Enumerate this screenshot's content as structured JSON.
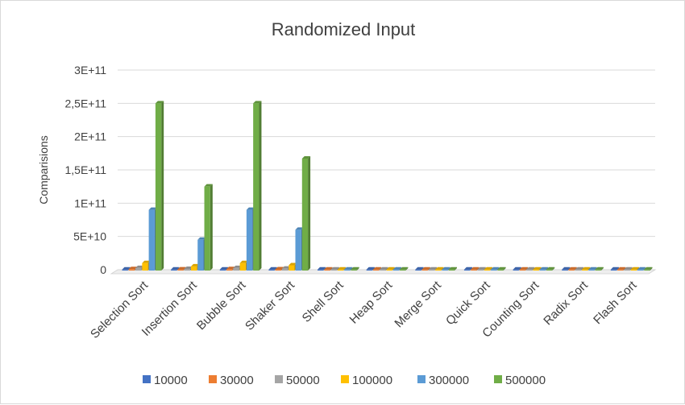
{
  "chart_data": {
    "type": "bar",
    "title": "Randomized Input",
    "xlabel": "",
    "ylabel": "Comparisions",
    "ylim": [
      0,
      300000000000
    ],
    "yticks": [
      0,
      50000000000,
      100000000000,
      150000000000,
      200000000000,
      250000000000,
      300000000000
    ],
    "ytick_labels": [
      "0",
      "5E+10",
      "1E+11",
      "1,5E+11",
      "2E+11",
      "2,5E+11",
      "3E+11"
    ],
    "categories": [
      "Selection Sort",
      "Insertion Sort",
      "Bubble Sort",
      "Shaker Sort",
      "Shell Sort",
      "Heap Sort",
      "Merge Sort",
      "Quick Sort",
      "Counting Sort",
      "Radix Sort",
      "Flash Sort"
    ],
    "series": [
      {
        "name": "10000",
        "color": "#4472C4",
        "values": [
          100000000,
          50000000,
          100000000,
          70000000,
          600000,
          500000,
          300000,
          300000,
          60000,
          400000,
          200000
        ]
      },
      {
        "name": "30000",
        "color": "#ED7D31",
        "values": [
          900000000,
          450000000,
          900000000,
          600000000,
          2000000,
          1600000,
          1000000,
          1100000,
          180000,
          1300000,
          700000
        ]
      },
      {
        "name": "50000",
        "color": "#A5A5A5",
        "values": [
          2500000000,
          1250000000,
          2500000000,
          1670000000,
          3600000,
          2800000,
          1700000,
          1900000,
          300000,
          2100000,
          1100000
        ]
      },
      {
        "name": "100000",
        "color": "#FFC000",
        "values": [
          10000000000,
          5000000000,
          10000000000,
          6700000000,
          7800000,
          6000000,
          3600000,
          4000000,
          600000,
          4300000,
          2300000
        ]
      },
      {
        "name": "300000",
        "color": "#5B9BD5",
        "values": [
          90000000000,
          45000000000,
          90000000000,
          60000000000,
          27000000,
          19000000,
          11500000,
          13000000,
          1800000,
          13000000,
          6800000
        ]
      },
      {
        "name": "500000",
        "color": "#70AD47",
        "values": [
          250000000000,
          125000000000,
          250000000000,
          167000000000,
          49000000,
          33000000,
          20000000,
          22000000,
          3000000,
          22000000,
          11000000
        ]
      }
    ],
    "grid": true,
    "legend_position": "bottom"
  }
}
